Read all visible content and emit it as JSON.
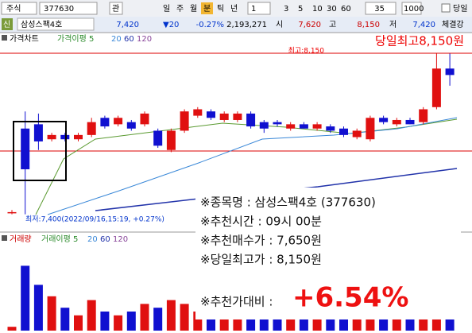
{
  "toolbar": {
    "market": "주식",
    "code": "377630",
    "watch": "관",
    "periods": [
      "일",
      "주",
      "월",
      "분",
      "틱",
      "년"
    ],
    "active_period": "분",
    "interval": "1",
    "intervals": [
      "3",
      "5",
      "10",
      "30",
      "60"
    ],
    "count": "35",
    "max_count": "1000",
    "today": "당일"
  },
  "quote": {
    "flag": "신",
    "name": "삼성스팩4호",
    "price": "7,420",
    "change": "▼20",
    "change_pct": "-0.27%",
    "volume": "2,193,271",
    "open_label": "시",
    "open": "7,620",
    "high_label": "고",
    "high": "8,150",
    "low_label": "저",
    "low": "7,420",
    "tab": "체결강"
  },
  "chart": {
    "price_title": "가격차트",
    "ma_title": "가격이평 5",
    "ma_periods": [
      "20",
      "60",
      "120"
    ],
    "high_label": "최고:8,150",
    "low_label": "최저:7,400(2022/09/16,15:19, +0.27%)",
    "headline": "당일최고8,150원",
    "ylim": [
      7380,
      8170
    ],
    "candles": [
      {
        "o": 7410,
        "h": 7420,
        "l": 7400,
        "c": 7410
      },
      {
        "o": 7800,
        "h": 7880,
        "l": 7400,
        "c": 7610
      },
      {
        "o": 7820,
        "h": 7870,
        "l": 7700,
        "c": 7740
      },
      {
        "o": 7750,
        "h": 7780,
        "l": 7740,
        "c": 7770
      },
      {
        "o": 7770,
        "h": 7780,
        "l": 7740,
        "c": 7750
      },
      {
        "o": 7750,
        "h": 7780,
        "l": 7740,
        "c": 7770
      },
      {
        "o": 7770,
        "h": 7850,
        "l": 7760,
        "c": 7830
      },
      {
        "o": 7850,
        "h": 7860,
        "l": 7800,
        "c": 7810
      },
      {
        "o": 7820,
        "h": 7860,
        "l": 7810,
        "c": 7850
      },
      {
        "o": 7830,
        "h": 7840,
        "l": 7790,
        "c": 7800
      },
      {
        "o": 7820,
        "h": 7880,
        "l": 7810,
        "c": 7870
      },
      {
        "o": 7790,
        "h": 7800,
        "l": 7710,
        "c": 7720
      },
      {
        "o": 7700,
        "h": 7800,
        "l": 7690,
        "c": 7790
      },
      {
        "o": 7790,
        "h": 7890,
        "l": 7780,
        "c": 7880
      },
      {
        "o": 7860,
        "h": 7900,
        "l": 7850,
        "c": 7890
      },
      {
        "o": 7880,
        "h": 7890,
        "l": 7840,
        "c": 7850
      },
      {
        "o": 7840,
        "h": 7880,
        "l": 7830,
        "c": 7870
      },
      {
        "o": 7840,
        "h": 7880,
        "l": 7830,
        "c": 7870
      },
      {
        "o": 7870,
        "h": 7880,
        "l": 7800,
        "c": 7810
      },
      {
        "o": 7830,
        "h": 7840,
        "l": 7780,
        "c": 7800
      },
      {
        "o": 7830,
        "h": 7840,
        "l": 7810,
        "c": 7820
      },
      {
        "o": 7800,
        "h": 7830,
        "l": 7790,
        "c": 7820
      },
      {
        "o": 7820,
        "h": 7830,
        "l": 7800,
        "c": 7800
      },
      {
        "o": 7800,
        "h": 7830,
        "l": 7790,
        "c": 7820
      },
      {
        "o": 7810,
        "h": 7820,
        "l": 7780,
        "c": 7790
      },
      {
        "o": 7800,
        "h": 7810,
        "l": 7760,
        "c": 7770
      },
      {
        "o": 7760,
        "h": 7800,
        "l": 7750,
        "c": 7790
      },
      {
        "o": 7750,
        "h": 7860,
        "l": 7740,
        "c": 7850
      },
      {
        "o": 7850,
        "h": 7860,
        "l": 7820,
        "c": 7830
      },
      {
        "o": 7820,
        "h": 7850,
        "l": 7810,
        "c": 7840
      },
      {
        "o": 7840,
        "h": 7850,
        "l": 7820,
        "c": 7820
      },
      {
        "o": 7830,
        "h": 7900,
        "l": 7820,
        "c": 7890
      },
      {
        "o": 7900,
        "h": 8150,
        "l": 7890,
        "c": 8080
      },
      {
        "o": 8080,
        "h": 8150,
        "l": 8000,
        "c": 8050
      }
    ],
    "volume_title": "거래량",
    "volume_ma_title": "거래이평 5",
    "volume_ma_periods": [
      "20",
      "60",
      "120"
    ],
    "volume_ylim": [
      0,
      100
    ],
    "volumes": [
      5,
      85,
      60,
      45,
      30,
      20,
      40,
      25,
      20,
      25,
      35,
      30,
      40,
      35,
      25,
      20,
      25,
      30,
      30,
      25,
      20,
      20,
      15,
      20,
      15,
      20,
      25,
      35,
      20,
      20,
      15,
      30,
      45,
      85
    ]
  },
  "note": {
    "lines": [
      "※종목명 : 삼성스팩4호 (377630)",
      "※추천시간 : 09시 00분",
      "※추천매수가 : 7,650원",
      "※당일최고가 : 8,150원"
    ],
    "ratio_label": "※추천가대비 :",
    "ratio": "+6.54%"
  }
}
